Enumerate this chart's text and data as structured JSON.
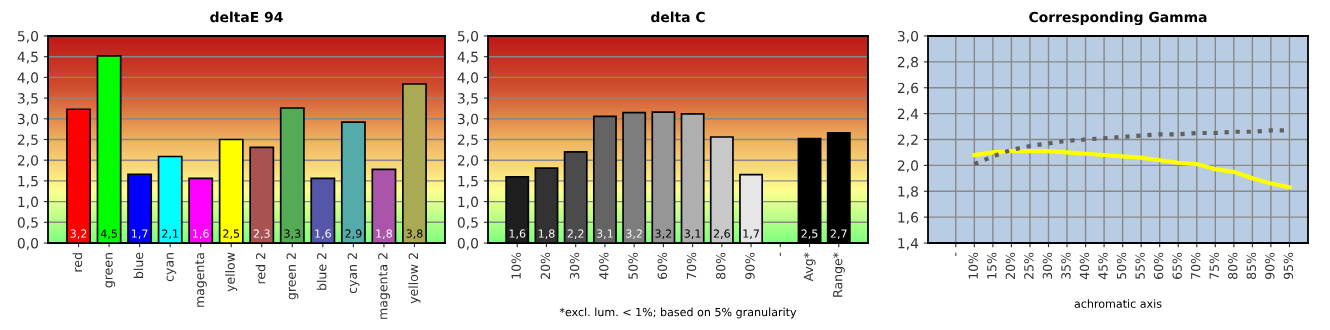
{
  "chart_data": [
    {
      "type": "bar",
      "title": "deltaE 94",
      "categories": [
        "red",
        "green",
        "blue",
        "cyan",
        "magenta",
        "yellow",
        "red 2",
        "green 2",
        "blue 2",
        "cyan 2",
        "magenta 2",
        "yellow 2"
      ],
      "values": [
        3.23,
        4.52,
        1.66,
        2.09,
        1.56,
        2.5,
        2.31,
        3.26,
        1.56,
        2.92,
        1.78,
        3.84
      ],
      "value_labels": [
        "3,2",
        "4,5",
        "1,7",
        "2,1",
        "1,6",
        "2,5",
        "2,3",
        "3,3",
        "1,6",
        "2,9",
        "1,8",
        "3,8"
      ],
      "colors": [
        "#ff0000",
        "#00ff00",
        "#0000ff",
        "#00ffff",
        "#ff00ff",
        "#ffff00",
        "#a85252",
        "#55aa55",
        "#5555aa",
        "#55aaaa",
        "#aa55aa",
        "#aaaa55"
      ],
      "ylim": [
        0,
        5
      ],
      "yticks": [
        {
          "value": 0,
          "label": "0,0"
        },
        {
          "value": 0.5,
          "label": "0,5"
        },
        {
          "value": 1,
          "label": "1,0"
        },
        {
          "value": 1.5,
          "label": "1,5"
        },
        {
          "value": 2,
          "label": "2,0"
        },
        {
          "value": 2.5,
          "label": "2,5"
        },
        {
          "value": 3,
          "label": "3,0"
        },
        {
          "value": 3.5,
          "label": "3,5"
        },
        {
          "value": 4,
          "label": "4,0"
        },
        {
          "value": 4.5,
          "label": "4,5"
        },
        {
          "value": 5,
          "label": "5,0"
        }
      ],
      "grid": "y"
    },
    {
      "type": "bar",
      "title": "delta C",
      "categories": [
        "10%",
        "20%",
        "30%",
        "40%",
        "50%",
        "60%",
        "70%",
        "80%",
        "90%",
        "-",
        "Avg*",
        "Range*"
      ],
      "values": [
        1.6,
        1.81,
        2.2,
        3.06,
        3.15,
        3.16,
        3.12,
        2.56,
        1.65,
        null,
        2.52,
        2.66
      ],
      "value_labels": [
        "1,6",
        "1,8",
        "2,2",
        "3,1",
        "3,2",
        "3,2",
        "3,1",
        "2,6",
        "1,7",
        null,
        "2,5",
        "2,7"
      ],
      "colors": [
        "#1e1e1e",
        "#323232",
        "#4b4b4b",
        "#646464",
        "#7d7d7d",
        "#969696",
        "#afafaf",
        "#c8c8c8",
        "#e6e6e6",
        null,
        "#000000",
        "#000000"
      ],
      "ylim": [
        0,
        5
      ],
      "yticks": [
        {
          "value": 0,
          "label": "0,0"
        },
        {
          "value": 0.5,
          "label": "0,5"
        },
        {
          "value": 1,
          "label": "1,0"
        },
        {
          "value": 1.5,
          "label": "1,5"
        },
        {
          "value": 2,
          "label": "2,0"
        },
        {
          "value": 2.5,
          "label": "2,5"
        },
        {
          "value": 3,
          "label": "3,0"
        },
        {
          "value": 3.5,
          "label": "3,5"
        },
        {
          "value": 4,
          "label": "4,0"
        },
        {
          "value": 4.5,
          "label": "4,5"
        },
        {
          "value": 5,
          "label": "5,0"
        }
      ],
      "grid": "y",
      "annotations": [
        "*excl. lum. < 1%; based on 5% granularity"
      ]
    },
    {
      "type": "line",
      "title": "Corresponding Gamma",
      "xlabel": "achromatic axis",
      "categories": [
        "-",
        "10%",
        "15%",
        "20%",
        "25%",
        "30%",
        "35%",
        "40%",
        "45%",
        "50%",
        "55%",
        "60%",
        "65%",
        "70%",
        "75%",
        "80%",
        "85%",
        "90%",
        "95%"
      ],
      "series": [
        {
          "color": "#ffff00",
          "line_style": "solid",
          "values": [
            null,
            2.08,
            2.1,
            2.11,
            2.11,
            2.11,
            2.1,
            2.09,
            2.08,
            2.07,
            2.06,
            2.04,
            2.02,
            2.01,
            1.97,
            1.95,
            1.9,
            1.86,
            1.83
          ]
        },
        {
          "color": "#606060",
          "line_style": "dotted",
          "values": [
            null,
            2.01,
            2.07,
            2.12,
            2.15,
            2.17,
            2.19,
            2.2,
            2.21,
            2.22,
            2.23,
            2.24,
            2.24,
            2.25,
            2.25,
            2.26,
            2.26,
            2.27,
            2.27
          ]
        }
      ],
      "ylim": [
        1.4,
        3.0
      ],
      "yticks": [
        {
          "value": 1.4,
          "label": "1,4"
        },
        {
          "value": 1.6,
          "label": "1,6"
        },
        {
          "value": 1.8,
          "label": "1,8"
        },
        {
          "value": 2.0,
          "label": "2,0"
        },
        {
          "value": 2.2,
          "label": "2,2"
        },
        {
          "value": 2.4,
          "label": "2,4"
        },
        {
          "value": 2.6,
          "label": "2,6"
        },
        {
          "value": 2.8,
          "label": "2,8"
        },
        {
          "value": 3.0,
          "label": "3,0"
        }
      ],
      "grid": true
    }
  ]
}
